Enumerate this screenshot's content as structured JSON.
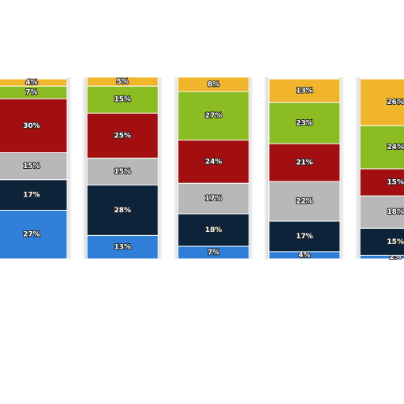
{
  "chart_data": {
    "type": "stacked_bar",
    "categories": [
      null,
      null,
      null,
      null,
      null
    ],
    "series": [
      {
        "color": "#2f7ed8",
        "values": [
          27,
          13,
          7,
          4,
          2
        ],
        "value_labels": [
          "27%",
          "13%",
          "7%",
          "4%",
          "2%"
        ]
      },
      {
        "color": "#0d233a",
        "values": [
          17,
          28,
          18,
          17,
          15
        ],
        "value_labels": [
          "17%",
          "28%",
          "18%",
          "17%",
          "15%"
        ]
      },
      {
        "color": "#b8b8b8",
        "values": [
          15,
          15,
          17,
          22,
          18
        ],
        "value_labels": [
          "15%",
          "15%",
          "17%",
          "22%",
          "18%"
        ]
      },
      {
        "color": "#a30f10",
        "values": [
          30,
          25,
          24,
          21,
          15
        ],
        "value_labels": [
          "30%",
          "25%",
          "24%",
          "21%",
          "15%"
        ]
      },
      {
        "color": "#8bbc21",
        "values": [
          7,
          15,
          27,
          23,
          24
        ],
        "value_labels": [
          "7%",
          "15%",
          "27%",
          "23%",
          "24%"
        ]
      },
      {
        "color": "#f0b52b",
        "values": [
          4,
          5,
          8,
          13,
          26
        ],
        "value_labels": [
          "4%",
          "5%",
          "8%",
          "13%",
          "26%"
        ]
      }
    ]
  }
}
